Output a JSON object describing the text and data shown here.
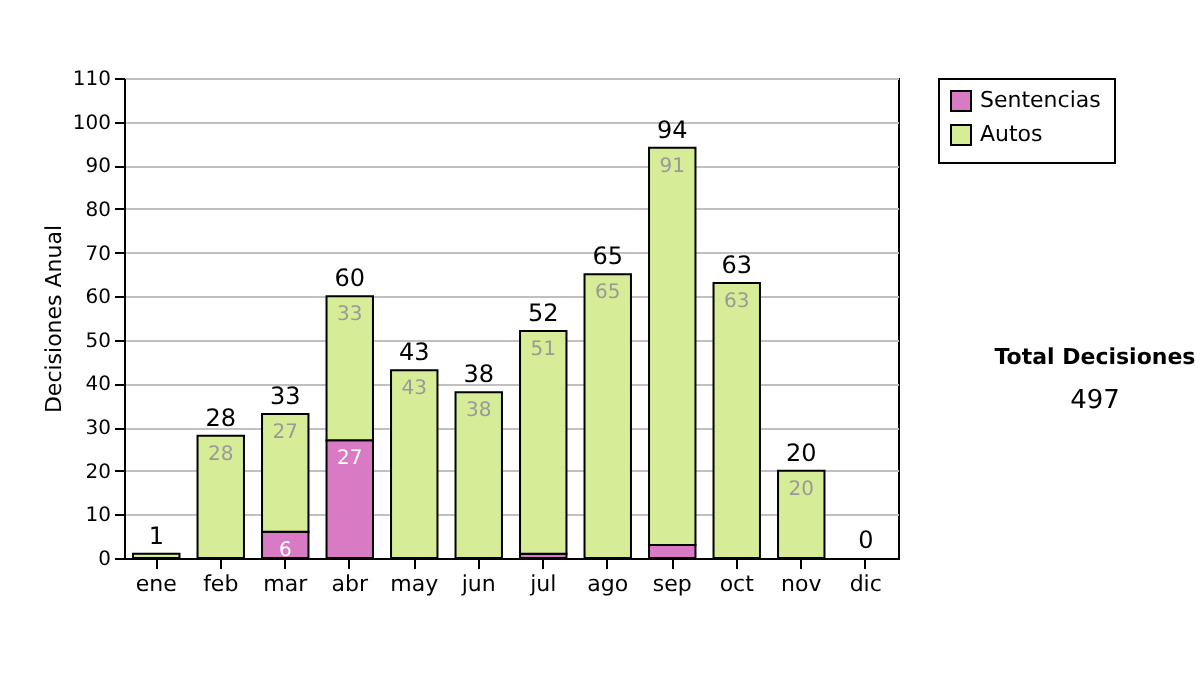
{
  "chart_data": {
    "type": "bar",
    "stacked": true,
    "ylabel": "Decisiones Anual",
    "categories": [
      "ene",
      "feb",
      "mar",
      "abr",
      "may",
      "jun",
      "jul",
      "ago",
      "sep",
      "oct",
      "nov",
      "dic"
    ],
    "series": [
      {
        "name": "Sentencias",
        "color": "#d97bc4",
        "values": [
          0,
          0,
          6,
          27,
          0,
          0,
          1,
          0,
          3,
          0,
          0,
          0
        ],
        "value_labels": [
          null,
          null,
          "6",
          "27",
          null,
          null,
          null,
          null,
          null,
          null,
          null,
          null
        ]
      },
      {
        "name": "Autos",
        "color": "#d6ec96",
        "values": [
          1,
          28,
          27,
          33,
          43,
          38,
          51,
          65,
          91,
          63,
          20,
          0
        ],
        "value_labels": [
          null,
          "28",
          "27",
          "33",
          "43",
          "38",
          "51",
          "65",
          "91",
          "63",
          "20",
          null
        ]
      }
    ],
    "totals": [
      "1",
      "28",
      "33",
      "60",
      "43",
      "38",
      "52",
      "65",
      "94",
      "63",
      "20",
      "0"
    ],
    "ylim": [
      0,
      110
    ],
    "yticks": [
      0,
      10,
      20,
      30,
      40,
      50,
      60,
      70,
      80,
      90,
      100,
      110
    ],
    "grid": "y",
    "legend": "right",
    "annotations": [
      "Total Decisiones",
      "497"
    ]
  }
}
